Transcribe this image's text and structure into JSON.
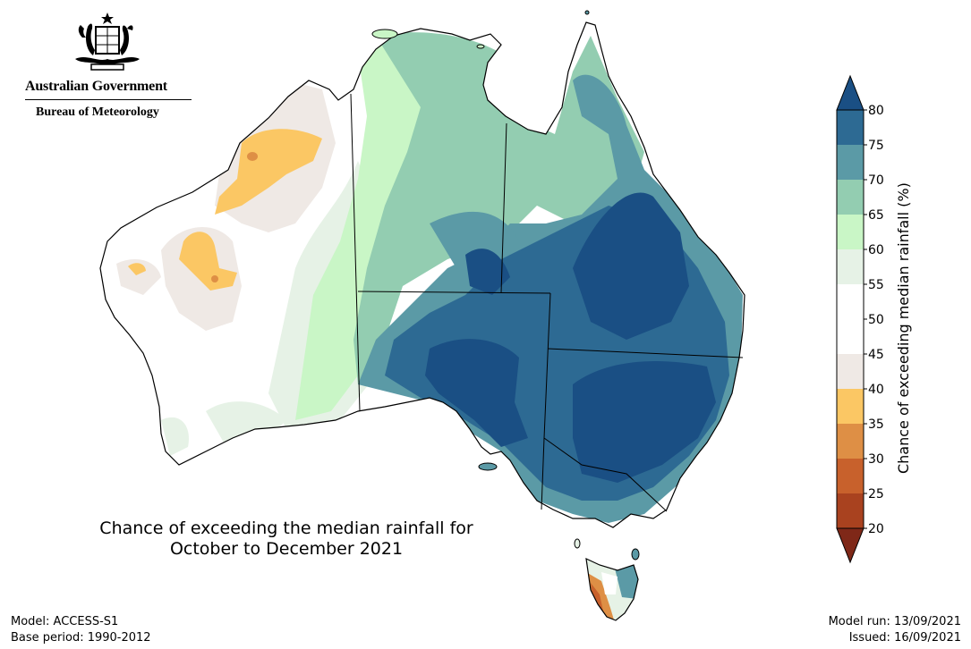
{
  "header": {
    "gov_name": "Australian Government",
    "bom_name": "Bureau of Meteorology",
    "crest": "commonwealth-coat-of-arms-icon"
  },
  "map": {
    "title_line1": "Chance of exceeding the median rainfall for",
    "title_line2": "October to December 2021",
    "region": "Australia",
    "state_borders": true
  },
  "legend": {
    "label": "Chance of exceeding median rainfall (%)",
    "ticks": [
      "80",
      "75",
      "70",
      "65",
      "60",
      "55",
      "50",
      "45",
      "40",
      "35",
      "30",
      "25",
      "20"
    ],
    "bins": [
      {
        "range": "above 80",
        "color": "#1a4f84"
      },
      {
        "range": "75-80",
        "color": "#2d6a93"
      },
      {
        "range": "70-75",
        "color": "#5b9aa6"
      },
      {
        "range": "65-70",
        "color": "#93cdb1"
      },
      {
        "range": "60-65",
        "color": "#c9f6c6"
      },
      {
        "range": "55-60",
        "color": "#e6f2e6"
      },
      {
        "range": "50-55",
        "color": "#ffffff"
      },
      {
        "range": "45-50",
        "color": "#ffffff"
      },
      {
        "range": "40-45",
        "color": "#efe9e5"
      },
      {
        "range": "35-40",
        "color": "#fbc764"
      },
      {
        "range": "30-35",
        "color": "#de8f45"
      },
      {
        "range": "25-30",
        "color": "#c8612c"
      },
      {
        "range": "20-25",
        "color": "#a9421f"
      },
      {
        "range": "below 20",
        "color": "#7f2818"
      }
    ]
  },
  "footer": {
    "model": "Model: ACCESS-S1",
    "base_period": "Base period: 1990-2012",
    "model_run": "Model run: 13/09/2021",
    "issued": "Issued: 16/09/2021"
  }
}
